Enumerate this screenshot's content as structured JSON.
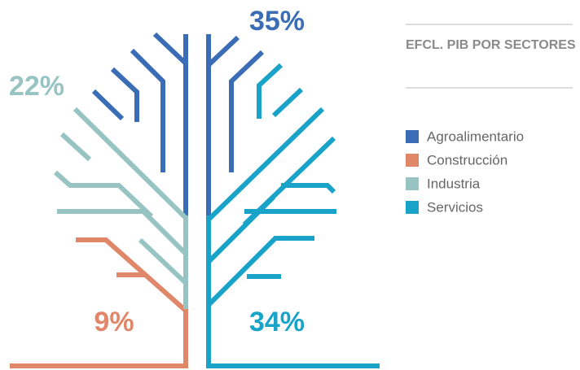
{
  "chart_data": {
    "type": "tree",
    "title": "EFCL. PIB POR SECTORES",
    "categories": [
      "Agroalimentario",
      "Construcción",
      "Industria",
      "Servicios"
    ],
    "values": [
      35,
      9,
      22,
      34
    ],
    "value_labels": [
      "35%",
      "9%",
      "22%",
      "34%"
    ],
    "colors": [
      "#3a6db5",
      "#e0876a",
      "#97c4c3",
      "#1aa3c8"
    ],
    "legend": "right"
  }
}
